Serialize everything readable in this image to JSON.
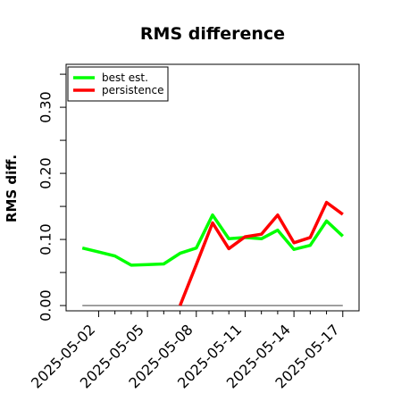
{
  "chart_data": {
    "type": "line",
    "title": "RMS difference",
    "ylabel": "RMS diff.",
    "xlabel": "",
    "x": [
      "2025-05-01",
      "2025-05-02",
      "2025-05-03",
      "2025-05-04",
      "2025-05-05",
      "2025-05-06",
      "2025-05-07",
      "2025-05-08",
      "2025-05-09",
      "2025-05-10",
      "2025-05-11",
      "2025-05-12",
      "2025-05-13",
      "2025-05-14",
      "2025-05-15",
      "2025-05-16",
      "2025-05-17"
    ],
    "xticks": [
      "2025-05-02",
      "2025-05-05",
      "2025-05-08",
      "2025-05-11",
      "2025-05-14",
      "2025-05-17"
    ],
    "yticks": [
      "0.00",
      "0.10",
      "0.20",
      "0.30"
    ],
    "ytick_values": [
      0,
      0.1,
      0.2,
      0.3
    ],
    "ylim": [
      -0.008,
      0.365
    ],
    "xlim": [
      "2025-04-30",
      "2025-05-18"
    ],
    "series": [
      {
        "name": "best est.",
        "color": "#00ff00",
        "values": [
          0.087,
          0.081,
          0.075,
          0.061,
          0.062,
          0.063,
          0.079,
          0.087,
          0.137,
          0.101,
          0.103,
          0.101,
          0.114,
          0.085,
          0.091,
          0.128,
          0.105
        ]
      },
      {
        "name": "persistence",
        "color": "#ff0000",
        "values": [
          null,
          null,
          null,
          null,
          null,
          null,
          0.0,
          0.062,
          0.125,
          0.086,
          0.104,
          0.108,
          0.137,
          0.095,
          0.103,
          0.156,
          0.138
        ]
      }
    ],
    "baseline": {
      "color": "#808080",
      "value": 0.0,
      "x_from": "2025-05-01",
      "x_to": "2025-05-17"
    },
    "legend_position": "top-left",
    "grid": false
  }
}
